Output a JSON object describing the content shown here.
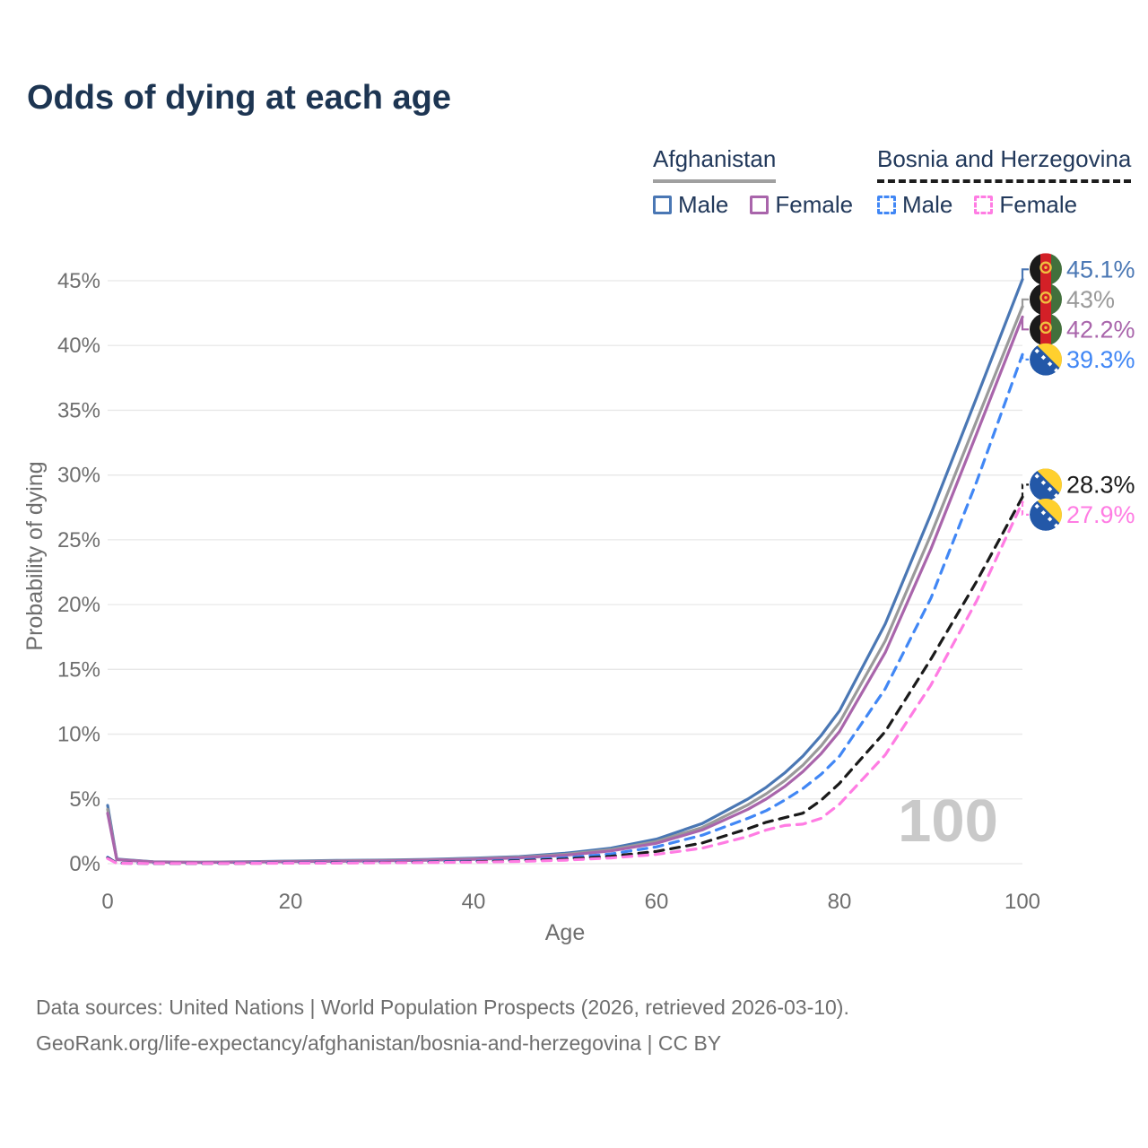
{
  "header": {
    "title": "Odds of dying at each age"
  },
  "colors": {
    "title": "#1d3552",
    "legend_text": "#22395b",
    "muted_text": "#6e6e6e",
    "grid": "#e8e8e8",
    "watermark": "#c9c9c9",
    "afghanistan_male": "#4a77b4",
    "afghanistan_both": "#9a9a9a",
    "afghanistan_female": "#a965ab",
    "bosnia_male": "#4187f5",
    "bosnia_both": "#1a1a1a",
    "bosnia_female": "#ff7ce3"
  },
  "legend": {
    "groups": [
      {
        "name": "Afghanistan",
        "underline_color": "#a0a0a0",
        "underline_style": "solid",
        "items": [
          {
            "label": "Male",
            "color": "#4a77b4",
            "style": "solid"
          },
          {
            "label": "Female",
            "color": "#a965ab",
            "style": "solid"
          }
        ]
      },
      {
        "name": "Bosnia and Herzegovina",
        "underline_color": "#1d1d1d",
        "underline_style": "dashed",
        "items": [
          {
            "label": "Male",
            "color": "#4187f5",
            "style": "dashed"
          },
          {
            "label": "Female",
            "color": "#ff7ce3",
            "style": "dashed"
          }
        ]
      }
    ]
  },
  "chart_data": {
    "type": "line",
    "title": "Odds of dying at each age",
    "xlabel": "Age",
    "ylabel": "Probability of dying",
    "xlim": [
      0,
      100
    ],
    "ylim": [
      0,
      45
    ],
    "x_tick_labels": [
      "0",
      "20",
      "40",
      "60",
      "80",
      "100"
    ],
    "y_tick_labels": [
      "0%",
      "5%",
      "10%",
      "15%",
      "20%",
      "25%",
      "30%",
      "35%",
      "40%",
      "45%"
    ],
    "grid": "horizontal",
    "legend_position": "top-right",
    "watermark": "100",
    "series": [
      {
        "name": "Afghanistan Male",
        "color": "#4a77b4",
        "dash": false,
        "flag": "afghanistan",
        "end_label": "45.1%",
        "label_color": "#4a77b4",
        "points": [
          [
            0,
            4.5
          ],
          [
            1,
            0.35
          ],
          [
            5,
            0.15
          ],
          [
            10,
            0.12
          ],
          [
            15,
            0.15
          ],
          [
            20,
            0.2
          ],
          [
            25,
            0.25
          ],
          [
            30,
            0.28
          ],
          [
            35,
            0.33
          ],
          [
            40,
            0.42
          ],
          [
            45,
            0.55
          ],
          [
            50,
            0.8
          ],
          [
            55,
            1.2
          ],
          [
            60,
            1.9
          ],
          [
            65,
            3.1
          ],
          [
            70,
            5.0
          ],
          [
            72,
            5.9
          ],
          [
            74,
            7.0
          ],
          [
            76,
            8.3
          ],
          [
            78,
            9.9
          ],
          [
            80,
            11.8
          ],
          [
            85,
            18.5
          ],
          [
            90,
            27.0
          ],
          [
            95,
            36.0
          ],
          [
            100,
            45.1
          ]
        ]
      },
      {
        "name": "Afghanistan",
        "color": "#9a9a9a",
        "dash": false,
        "flag": "afghanistan",
        "end_label": "43%",
        "label_color": "#9a9a9a",
        "points": [
          [
            0,
            4.2
          ],
          [
            1,
            0.33
          ],
          [
            5,
            0.14
          ],
          [
            10,
            0.11
          ],
          [
            15,
            0.14
          ],
          [
            20,
            0.18
          ],
          [
            25,
            0.22
          ],
          [
            30,
            0.25
          ],
          [
            35,
            0.3
          ],
          [
            40,
            0.38
          ],
          [
            45,
            0.5
          ],
          [
            50,
            0.72
          ],
          [
            55,
            1.08
          ],
          [
            60,
            1.72
          ],
          [
            65,
            2.8
          ],
          [
            70,
            4.55
          ],
          [
            72,
            5.4
          ],
          [
            74,
            6.4
          ],
          [
            76,
            7.6
          ],
          [
            78,
            9.1
          ],
          [
            80,
            10.9
          ],
          [
            85,
            17.2
          ],
          [
            90,
            25.4
          ],
          [
            95,
            34.2
          ],
          [
            100,
            43.0
          ]
        ]
      },
      {
        "name": "Afghanistan Female",
        "color": "#a965ab",
        "dash": false,
        "flag": "afghanistan",
        "end_label": "42.2%",
        "label_color": "#a965ab",
        "points": [
          [
            0,
            3.9
          ],
          [
            1,
            0.31
          ],
          [
            5,
            0.13
          ],
          [
            10,
            0.1
          ],
          [
            15,
            0.12
          ],
          [
            20,
            0.16
          ],
          [
            25,
            0.19
          ],
          [
            30,
            0.22
          ],
          [
            35,
            0.27
          ],
          [
            40,
            0.34
          ],
          [
            45,
            0.45
          ],
          [
            50,
            0.65
          ],
          [
            55,
            0.98
          ],
          [
            60,
            1.58
          ],
          [
            65,
            2.6
          ],
          [
            70,
            4.2
          ],
          [
            72,
            5.0
          ],
          [
            74,
            5.95
          ],
          [
            76,
            7.1
          ],
          [
            78,
            8.5
          ],
          [
            80,
            10.2
          ],
          [
            85,
            16.3
          ],
          [
            90,
            24.3
          ],
          [
            95,
            33.2
          ],
          [
            100,
            42.2
          ]
        ]
      },
      {
        "name": "Bosnia and Herzegovina Male",
        "color": "#4187f5",
        "dash": true,
        "flag": "bosnia",
        "end_label": "39.3%",
        "label_color": "#4187f5",
        "points": [
          [
            0,
            0.5
          ],
          [
            1,
            0.04
          ],
          [
            5,
            0.02
          ],
          [
            10,
            0.02
          ],
          [
            15,
            0.04
          ],
          [
            20,
            0.07
          ],
          [
            25,
            0.09
          ],
          [
            30,
            0.11
          ],
          [
            35,
            0.14
          ],
          [
            40,
            0.19
          ],
          [
            45,
            0.28
          ],
          [
            50,
            0.45
          ],
          [
            55,
            0.75
          ],
          [
            60,
            1.3
          ],
          [
            65,
            2.2
          ],
          [
            70,
            3.5
          ],
          [
            72,
            4.1
          ],
          [
            74,
            4.9
          ],
          [
            76,
            5.8
          ],
          [
            78,
            6.9
          ],
          [
            80,
            8.3
          ],
          [
            85,
            13.5
          ],
          [
            90,
            20.5
          ],
          [
            95,
            29.5
          ],
          [
            100,
            39.3
          ]
        ]
      },
      {
        "name": "Bosnia and Herzegovina",
        "color": "#1a1a1a",
        "dash": true,
        "flag": "bosnia",
        "end_label": "28.3%",
        "label_color": "#1a1a1a",
        "points": [
          [
            0,
            0.45
          ],
          [
            1,
            0.04
          ],
          [
            5,
            0.02
          ],
          [
            10,
            0.02
          ],
          [
            15,
            0.03
          ],
          [
            20,
            0.05
          ],
          [
            25,
            0.07
          ],
          [
            30,
            0.09
          ],
          [
            35,
            0.11
          ],
          [
            40,
            0.15
          ],
          [
            45,
            0.22
          ],
          [
            50,
            0.35
          ],
          [
            55,
            0.57
          ],
          [
            60,
            0.95
          ],
          [
            65,
            1.6
          ],
          [
            70,
            2.7
          ],
          [
            72,
            3.2
          ],
          [
            74,
            3.55
          ],
          [
            76,
            3.9
          ],
          [
            78,
            4.9
          ],
          [
            80,
            6.2
          ],
          [
            85,
            10.2
          ],
          [
            90,
            15.8
          ],
          [
            95,
            21.8
          ],
          [
            100,
            28.3
          ]
        ]
      },
      {
        "name": "Bosnia and Herzegovina Female",
        "color": "#ff7ce3",
        "dash": true,
        "flag": "bosnia",
        "end_label": "27.9%",
        "label_color": "#ff7ce3",
        "points": [
          [
            0,
            0.4
          ],
          [
            1,
            0.03
          ],
          [
            5,
            0.02
          ],
          [
            10,
            0.02
          ],
          [
            15,
            0.02
          ],
          [
            20,
            0.04
          ],
          [
            25,
            0.05
          ],
          [
            30,
            0.07
          ],
          [
            35,
            0.09
          ],
          [
            40,
            0.12
          ],
          [
            45,
            0.17
          ],
          [
            50,
            0.27
          ],
          [
            55,
            0.44
          ],
          [
            60,
            0.72
          ],
          [
            65,
            1.2
          ],
          [
            70,
            2.1
          ],
          [
            72,
            2.6
          ],
          [
            74,
            2.95
          ],
          [
            76,
            3.05
          ],
          [
            78,
            3.5
          ],
          [
            80,
            4.6
          ],
          [
            85,
            8.4
          ],
          [
            90,
            13.8
          ],
          [
            95,
            20.3
          ],
          [
            100,
            27.9
          ]
        ]
      }
    ]
  },
  "footer": {
    "line1": "Data sources: United Nations | World Population Prospects (2026, retrieved 2026-03-10).",
    "line2": "GeoRank.org/life-expectancy/afghanistan/bosnia-and-herzegovina | CC BY"
  }
}
